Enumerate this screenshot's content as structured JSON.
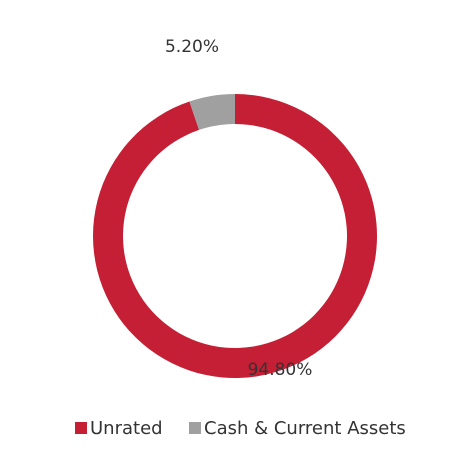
{
  "chart_data": {
    "type": "donut",
    "categories": [
      "Unrated",
      "Cash & Current Assets"
    ],
    "values": [
      94.8,
      5.2
    ],
    "value_labels": [
      "94.80%",
      "5.20%"
    ],
    "colors": [
      "#c41f34",
      "#a0a0a0"
    ],
    "legend": "bottom"
  }
}
